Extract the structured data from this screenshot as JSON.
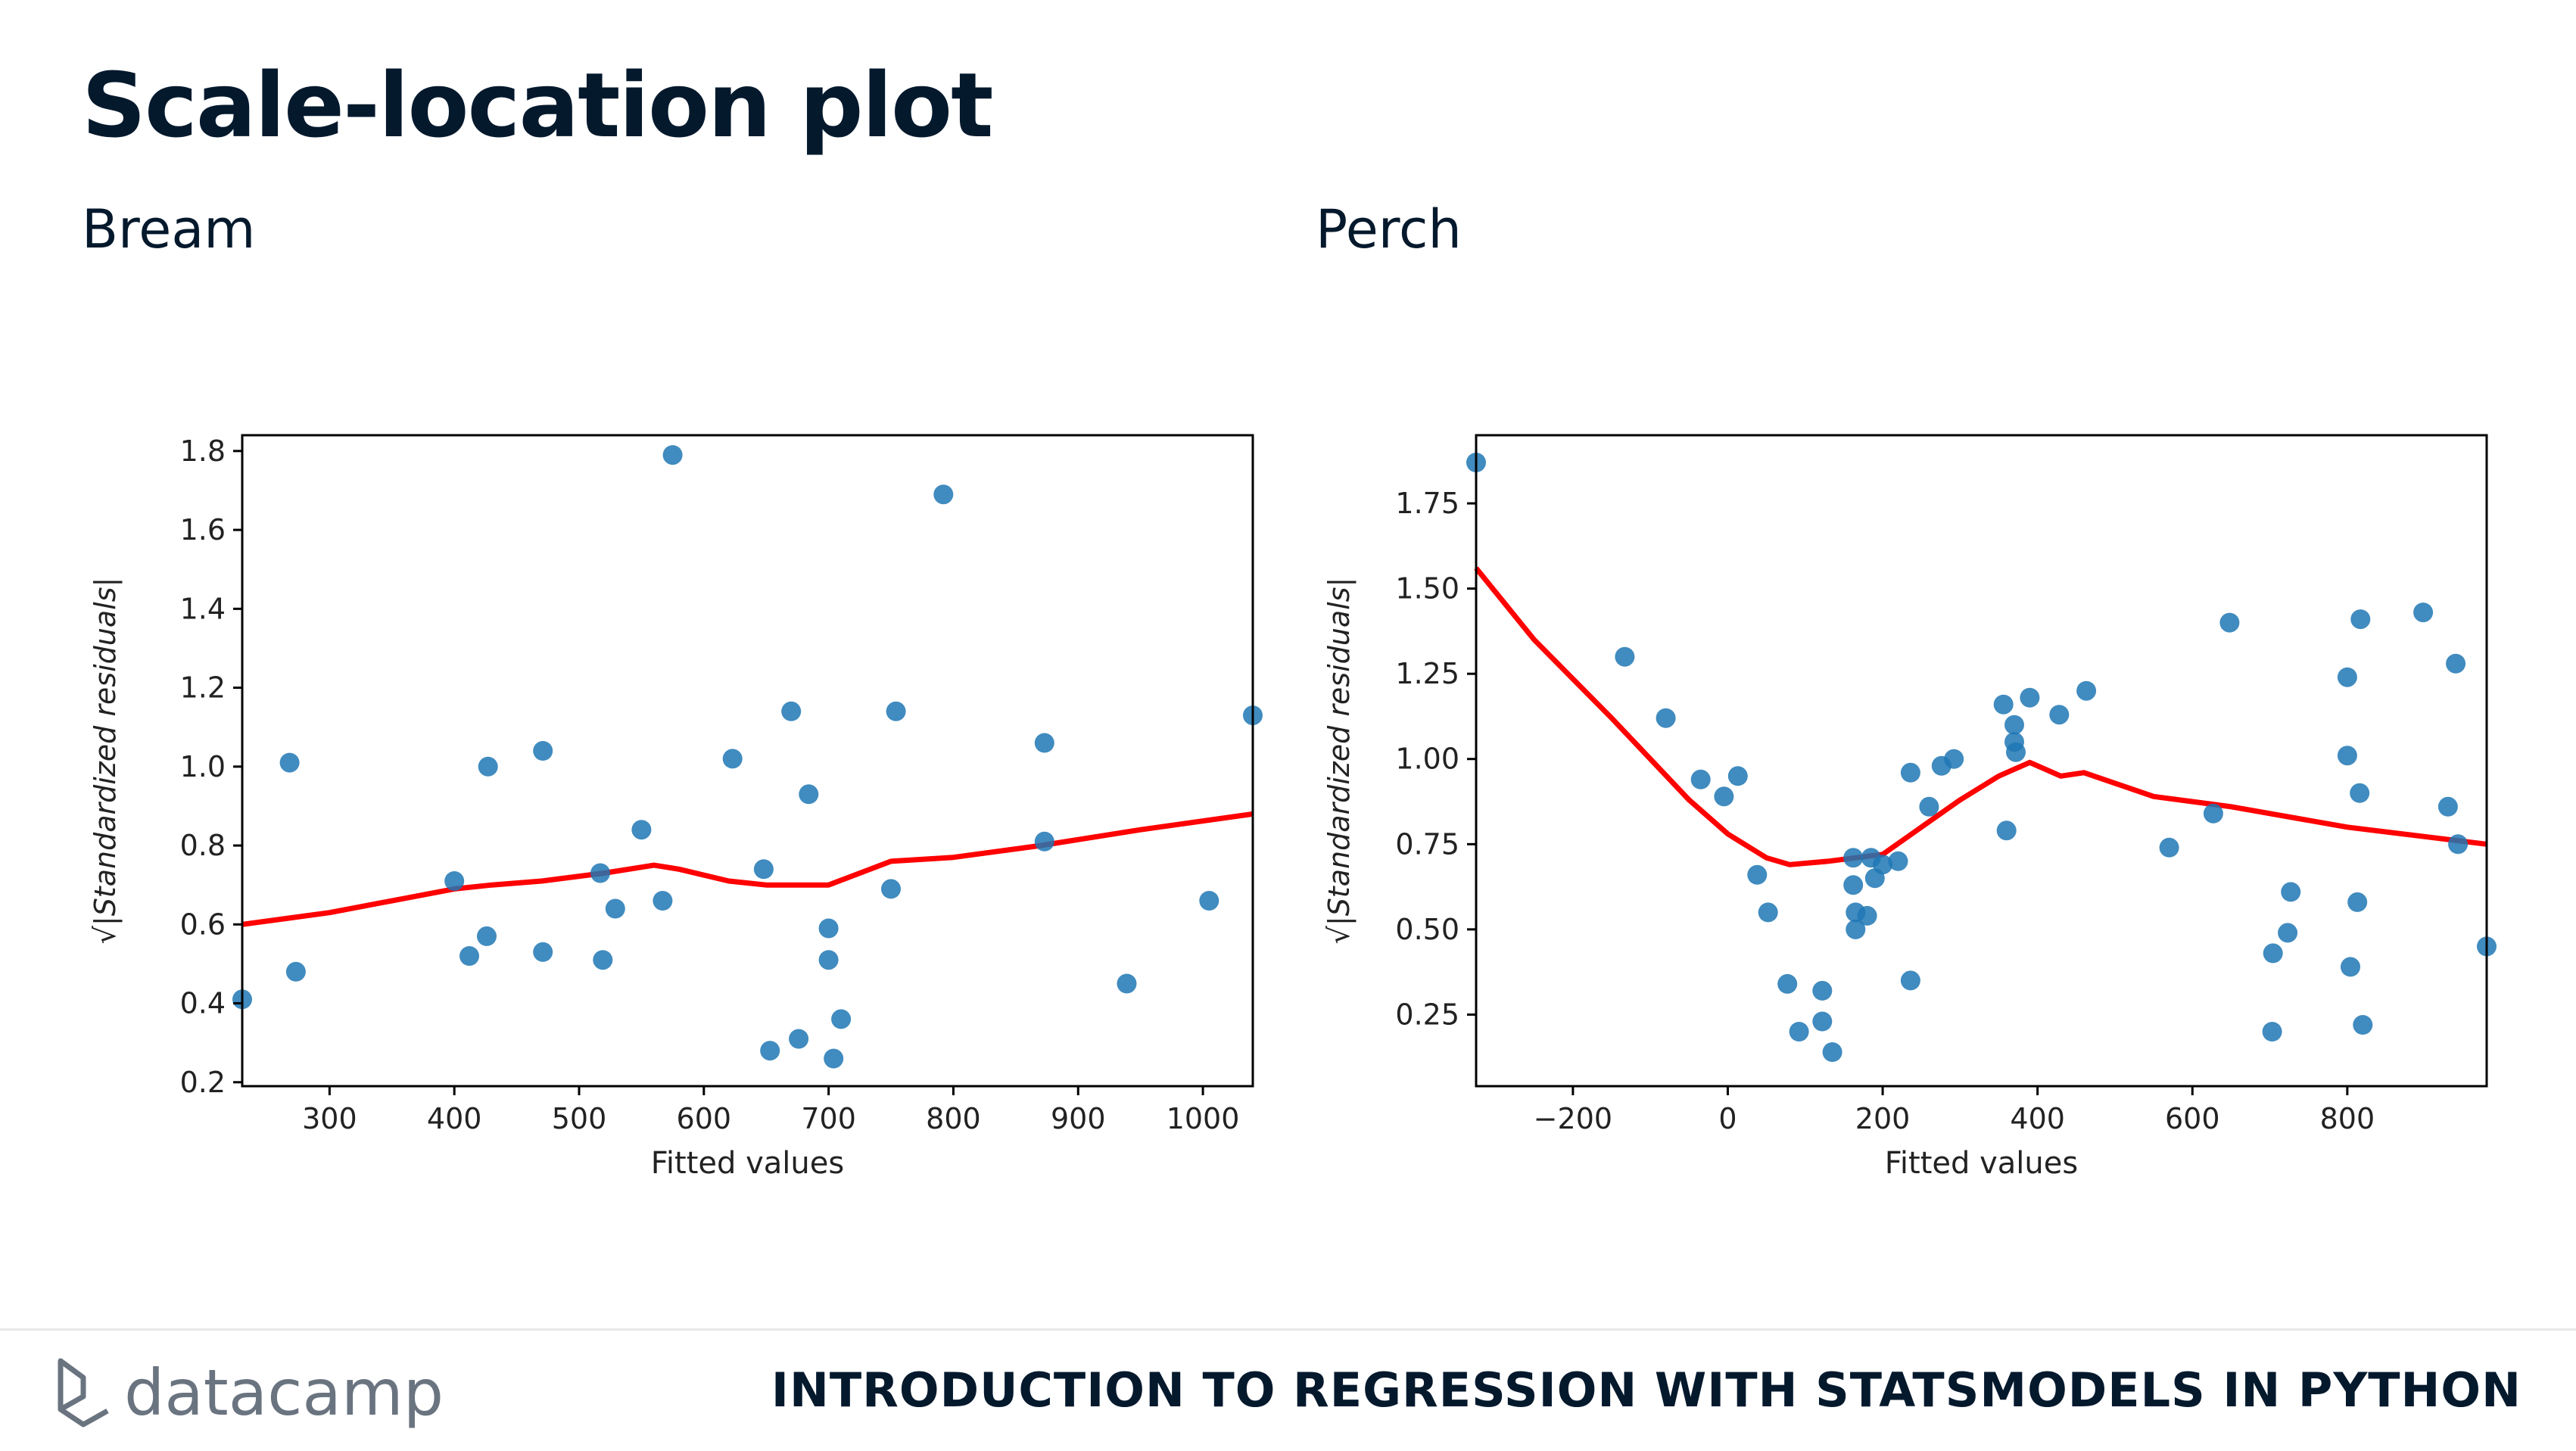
{
  "slide": {
    "title": "Scale-location plot",
    "course": "INTRODUCTION TO REGRESSION WITH STATSMODELS IN PYTHON",
    "brand": "datacamp"
  },
  "chart_data": [
    {
      "type": "scatter",
      "title": "Bream",
      "xlabel": "Fitted values",
      "ylabel": "√|Standardized residuals|",
      "xlim": [
        230,
        1040
      ],
      "ylim": [
        0.19,
        1.84
      ],
      "xticks": [
        300,
        400,
        500,
        600,
        700,
        800,
        900,
        1000
      ],
      "yticks": [
        0.2,
        0.4,
        0.6,
        0.8,
        1.0,
        1.2,
        1.4,
        1.6,
        1.8
      ],
      "ytick_labels": [
        "0.2",
        "0.4",
        "0.6",
        "0.8",
        "1.0",
        "1.2",
        "1.4",
        "1.6",
        "1.8"
      ],
      "point_color": "#1f77b4",
      "line_color": "#ff0000",
      "points": [
        [
          230,
          0.41
        ],
        [
          268,
          1.01
        ],
        [
          273,
          0.48
        ],
        [
          400,
          0.71
        ],
        [
          412,
          0.52
        ],
        [
          426,
          0.57
        ],
        [
          427,
          1.0
        ],
        [
          471,
          1.04
        ],
        [
          471,
          0.53
        ],
        [
          517,
          0.73
        ],
        [
          519,
          0.51
        ],
        [
          529,
          0.64
        ],
        [
          550,
          0.84
        ],
        [
          567,
          0.66
        ],
        [
          575,
          1.79
        ],
        [
          623,
          1.02
        ],
        [
          648,
          0.74
        ],
        [
          653,
          0.28
        ],
        [
          670,
          1.14
        ],
        [
          676,
          0.31
        ],
        [
          684,
          0.93
        ],
        [
          700,
          0.59
        ],
        [
          700,
          0.51
        ],
        [
          704,
          0.26
        ],
        [
          710,
          0.36
        ],
        [
          750,
          0.69
        ],
        [
          754,
          1.14
        ],
        [
          792,
          1.69
        ],
        [
          873,
          1.06
        ],
        [
          873,
          0.81
        ],
        [
          939,
          0.45
        ],
        [
          1005,
          0.66
        ],
        [
          1040,
          1.13
        ]
      ],
      "trend": [
        [
          230,
          0.6
        ],
        [
          300,
          0.63
        ],
        [
          400,
          0.69
        ],
        [
          430,
          0.7
        ],
        [
          470,
          0.71
        ],
        [
          520,
          0.73
        ],
        [
          560,
          0.75
        ],
        [
          580,
          0.74
        ],
        [
          620,
          0.71
        ],
        [
          650,
          0.7
        ],
        [
          700,
          0.7
        ],
        [
          750,
          0.76
        ],
        [
          800,
          0.77
        ],
        [
          870,
          0.8
        ],
        [
          950,
          0.84
        ],
        [
          1040,
          0.88
        ]
      ]
    },
    {
      "type": "scatter",
      "title": "Perch",
      "xlabel": "Fitted values",
      "ylabel": "√|Standardized residuals|",
      "xlim": [
        -325,
        980
      ],
      "ylim": [
        0.04,
        1.95
      ],
      "xticks": [
        -200,
        0,
        200,
        400,
        600,
        800
      ],
      "xtick_labels": [
        "−200",
        "0",
        "200",
        "400",
        "600",
        "800"
      ],
      "yticks": [
        0.25,
        0.5,
        0.75,
        1.0,
        1.25,
        1.5,
        1.75
      ],
      "ytick_labels": [
        "0.25",
        "0.50",
        "0.75",
        "1.00",
        "1.25",
        "1.50",
        "1.75"
      ],
      "point_color": "#1f77b4",
      "line_color": "#ff0000",
      "points": [
        [
          -325,
          1.87
        ],
        [
          -133,
          1.3
        ],
        [
          -80,
          1.12
        ],
        [
          -35,
          0.94
        ],
        [
          -5,
          0.89
        ],
        [
          13,
          0.95
        ],
        [
          38,
          0.66
        ],
        [
          52,
          0.55
        ],
        [
          77,
          0.34
        ],
        [
          92,
          0.2
        ],
        [
          122,
          0.32
        ],
        [
          122,
          0.23
        ],
        [
          135,
          0.14
        ],
        [
          162,
          0.71
        ],
        [
          162,
          0.63
        ],
        [
          165,
          0.55
        ],
        [
          165,
          0.5
        ],
        [
          180,
          0.54
        ],
        [
          185,
          0.71
        ],
        [
          190,
          0.65
        ],
        [
          200,
          0.69
        ],
        [
          220,
          0.7
        ],
        [
          236,
          0.96
        ],
        [
          236,
          0.35
        ],
        [
          260,
          0.86
        ],
        [
          276,
          0.98
        ],
        [
          292,
          1.0
        ],
        [
          356,
          1.16
        ],
        [
          360,
          0.79
        ],
        [
          370,
          1.1
        ],
        [
          370,
          1.05
        ],
        [
          372,
          1.02
        ],
        [
          390,
          1.18
        ],
        [
          428,
          1.13
        ],
        [
          463,
          1.2
        ],
        [
          570,
          0.74
        ],
        [
          627,
          0.84
        ],
        [
          648,
          1.4
        ],
        [
          703,
          0.2
        ],
        [
          704,
          0.43
        ],
        [
          723,
          0.49
        ],
        [
          727,
          0.61
        ],
        [
          800,
          1.24
        ],
        [
          800,
          1.01
        ],
        [
          804,
          0.39
        ],
        [
          813,
          0.58
        ],
        [
          816,
          0.9
        ],
        [
          817,
          1.41
        ],
        [
          820,
          0.22
        ],
        [
          898,
          1.43
        ],
        [
          930,
          0.86
        ],
        [
          940,
          1.28
        ],
        [
          943,
          0.75
        ],
        [
          980,
          0.45
        ]
      ],
      "trend": [
        [
          -325,
          1.56
        ],
        [
          -250,
          1.35
        ],
        [
          -150,
          1.12
        ],
        [
          -50,
          0.88
        ],
        [
          0,
          0.78
        ],
        [
          50,
          0.71
        ],
        [
          80,
          0.69
        ],
        [
          130,
          0.7
        ],
        [
          200,
          0.72
        ],
        [
          250,
          0.8
        ],
        [
          300,
          0.88
        ],
        [
          350,
          0.95
        ],
        [
          390,
          0.99
        ],
        [
          430,
          0.95
        ],
        [
          460,
          0.96
        ],
        [
          550,
          0.89
        ],
        [
          650,
          0.86
        ],
        [
          800,
          0.8
        ],
        [
          980,
          0.75
        ]
      ]
    }
  ]
}
